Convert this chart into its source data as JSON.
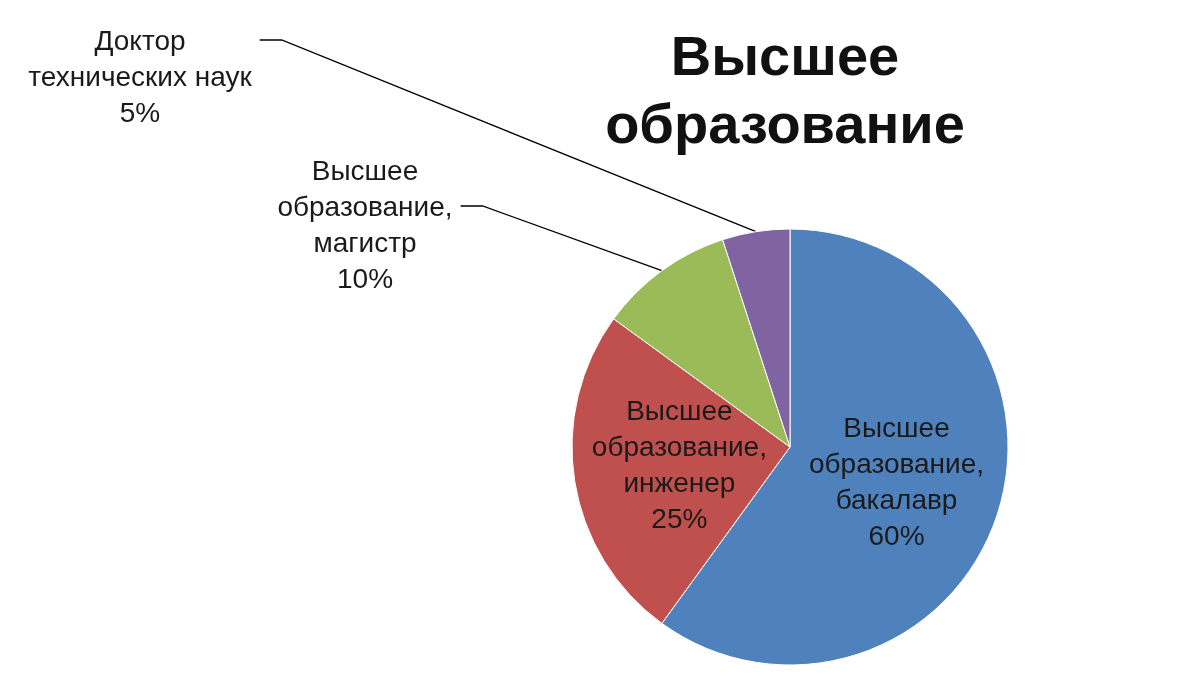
{
  "chart_data": {
    "type": "pie",
    "title": "Высшее образование",
    "categories": [
      "Высшее образование, бакалавр",
      "Высшее образование, инженер",
      "Высшее образование, магистр",
      "Доктор технических наук"
    ],
    "values": [
      60,
      25,
      10,
      5
    ],
    "colors": [
      "#4f81bd",
      "#c0504d",
      "#9bbb59",
      "#8064a2"
    ],
    "value_labels": [
      "60%",
      "25%",
      "10%",
      "5%"
    ]
  }
}
